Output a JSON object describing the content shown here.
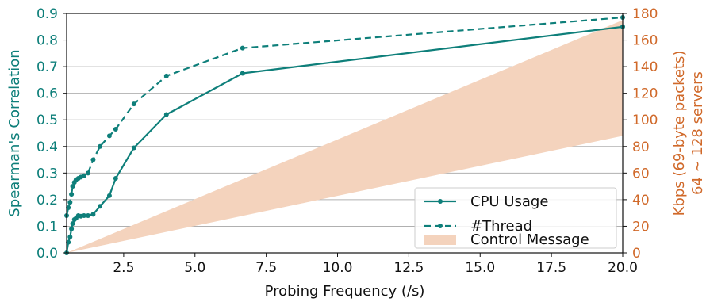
{
  "chart_data": {
    "type": "line",
    "title": "",
    "xlabel": "Probing Frequency (/s)",
    "ylabel_left": "Spearman's Correlation",
    "ylabel_right_lines": [
      "Kbps (69-byte packets)",
      "64 ~ 128 servers"
    ],
    "xlim": [
      0.5,
      20.0
    ],
    "ylim_left": [
      0.0,
      0.9
    ],
    "ylim_right": [
      0,
      180
    ],
    "x_ticks": [
      2.5,
      5.0,
      7.5,
      10.0,
      12.5,
      15.0,
      17.5,
      20.0
    ],
    "x_tick_labels": [
      "2.5",
      "5.0",
      "7.5",
      "10.0",
      "12.5",
      "15.0",
      "17.5",
      "20.0"
    ],
    "y_left_ticks": [
      0.0,
      0.1,
      0.2,
      0.3,
      0.4,
      0.5,
      0.6,
      0.7,
      0.8,
      0.9
    ],
    "y_left_tick_labels": [
      "0.0",
      "0.1",
      "0.2",
      "0.3",
      "0.4",
      "0.5",
      "0.6",
      "0.7",
      "0.8",
      "0.9"
    ],
    "y_right_ticks": [
      0,
      20,
      40,
      60,
      80,
      100,
      120,
      140,
      160,
      180
    ],
    "y_right_tick_labels": [
      "0",
      "20",
      "40",
      "60",
      "80",
      "100",
      "120",
      "140",
      "160",
      "180"
    ],
    "grid": "horizontal",
    "legend_position": "bottom-right",
    "series": [
      {
        "name": "CPU Usage",
        "axis": "left",
        "style": "solid",
        "color": "#0e7f7a",
        "x": [
          0.5,
          0.56,
          0.62,
          0.67,
          0.71,
          0.77,
          0.83,
          0.91,
          1.0,
          1.11,
          1.25,
          1.43,
          1.67,
          2.0,
          2.22,
          2.86,
          4.0,
          6.67,
          20.0
        ],
        "y": [
          0.0,
          0.04,
          0.06,
          0.09,
          0.11,
          0.125,
          0.13,
          0.14,
          0.138,
          0.14,
          0.14,
          0.145,
          0.175,
          0.215,
          0.28,
          0.395,
          0.52,
          0.675,
          0.85
        ]
      },
      {
        "name": "#Thread",
        "axis": "left",
        "style": "dashed",
        "color": "#0e7f7a",
        "x": [
          0.5,
          0.56,
          0.62,
          0.67,
          0.71,
          0.77,
          0.83,
          0.91,
          1.0,
          1.11,
          1.25,
          1.43,
          1.67,
          2.0,
          2.22,
          2.86,
          4.0,
          6.67,
          20.0
        ],
        "y": [
          0.14,
          0.17,
          0.19,
          0.22,
          0.25,
          0.265,
          0.275,
          0.28,
          0.285,
          0.29,
          0.3,
          0.35,
          0.4,
          0.44,
          0.465,
          0.56,
          0.665,
          0.77,
          0.885
        ]
      }
    ],
    "band": {
      "name": "Control Message",
      "axis": "right",
      "color": "#f4d3bd",
      "x": [
        0.5,
        20.0
      ],
      "lower": [
        0,
        88
      ],
      "upper": [
        0,
        175
      ]
    }
  }
}
